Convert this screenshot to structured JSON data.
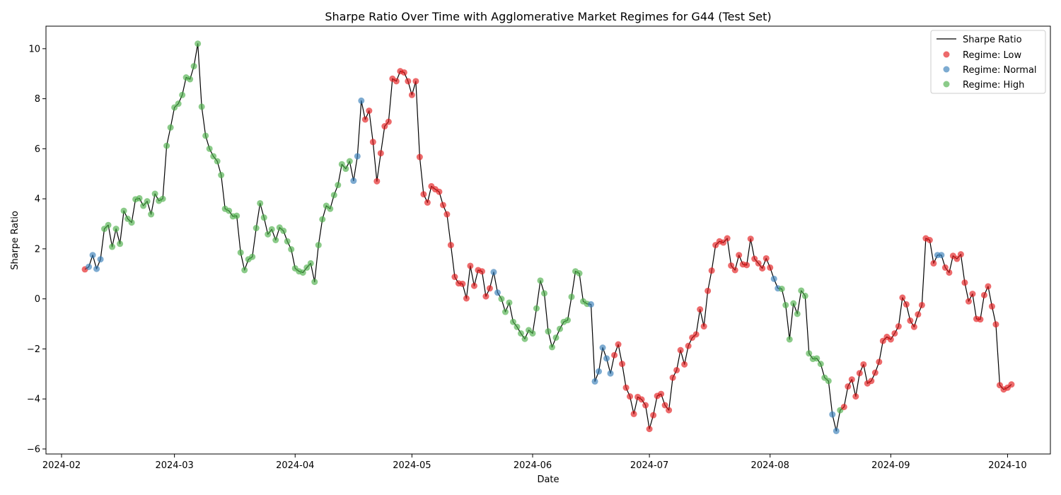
{
  "chart_data": {
    "type": "line",
    "title": "Sharpe Ratio Over Time with Agglomerative Market Regimes for G44 (Test Set)",
    "xlabel": "Date",
    "ylabel": "Sharpe Ratio",
    "xlim": [
      "2024-01-28",
      "2024-10-12"
    ],
    "ylim": [
      -6.2,
      10.9
    ],
    "x_ticks": [
      "2024-02",
      "2024-03",
      "2024-04",
      "2024-05",
      "2024-06",
      "2024-07",
      "2024-08",
      "2024-09",
      "2024-10"
    ],
    "y_ticks": [
      -6,
      -4,
      -2,
      0,
      2,
      4,
      6,
      8,
      10
    ],
    "grid": false,
    "legend_position": "top-right",
    "legend": [
      "Sharpe Ratio",
      "Regime: Low",
      "Regime: Normal",
      "Regime: High"
    ],
    "colors": {
      "line": "#000000",
      "Low": "#e41a1c",
      "Normal": "#377eb8",
      "High": "#4daf4a"
    },
    "regime_codes": {
      "L": "Low",
      "N": "Normal",
      "H": "High"
    },
    "start_date": "2024-02-07",
    "values": [
      1.18,
      1.28,
      1.75,
      1.2,
      1.58,
      2.8,
      2.95,
      2.08,
      2.8,
      2.2,
      3.52,
      3.2,
      3.05,
      3.98,
      4.02,
      3.72,
      3.9,
      3.38,
      4.2,
      3.92,
      4.0,
      6.12,
      6.85,
      7.65,
      7.8,
      8.15,
      8.85,
      8.78,
      9.3,
      10.2,
      7.68,
      6.52,
      6.0,
      5.7,
      5.5,
      4.95,
      3.6,
      3.52,
      3.3,
      3.32,
      1.85,
      1.15,
      1.58,
      1.68,
      2.83,
      3.82,
      3.25,
      2.58,
      2.78,
      2.35,
      2.85,
      2.72,
      2.3,
      1.98,
      1.22,
      1.1,
      1.05,
      1.25,
      1.42,
      0.68,
      2.15,
      3.18,
      3.72,
      3.6,
      4.15,
      4.55,
      5.38,
      5.2,
      5.5,
      4.72,
      5.7,
      7.92,
      7.17,
      7.52,
      6.27,
      4.7,
      5.82,
      6.9,
      7.08,
      8.8,
      8.7,
      9.1,
      9.05,
      8.7,
      8.15,
      8.7,
      5.67,
      4.18,
      3.85,
      4.5,
      4.38,
      4.28,
      3.75,
      3.38,
      2.15,
      0.88,
      0.62,
      0.6,
      0.02,
      1.32,
      0.52,
      1.15,
      1.1,
      0.1,
      0.42,
      1.07,
      0.25,
      0.0,
      -0.52,
      -0.15,
      -0.92,
      -1.12,
      -1.38,
      -1.6,
      -1.25,
      -1.38,
      -0.38,
      0.73,
      0.22,
      -1.3,
      -1.93,
      -1.55,
      -1.2,
      -0.92,
      -0.85,
      0.08,
      1.1,
      1.02,
      -0.1,
      -0.2,
      -0.22,
      -3.3,
      -2.9,
      -1.95,
      -2.38,
      -2.98,
      -2.25,
      -1.82,
      -2.6,
      -3.55,
      -3.9,
      -4.6,
      -3.92,
      -4.02,
      -4.25,
      -5.2,
      -4.65,
      -3.88,
      -3.8,
      -4.25,
      -4.45,
      -3.15,
      -2.85,
      -2.05,
      -2.62,
      -1.88,
      -1.55,
      -1.42,
      -0.42,
      -1.1,
      0.32,
      1.13,
      2.15,
      2.3,
      2.25,
      2.42,
      1.33,
      1.15,
      1.75,
      1.38,
      1.35,
      2.4,
      1.6,
      1.42,
      1.22,
      1.62,
      1.25,
      0.8,
      0.42,
      0.4,
      -0.25,
      -1.62,
      -0.18,
      -0.6,
      0.33,
      0.12,
      -2.18,
      -2.4,
      -2.38,
      -2.6,
      -3.15,
      -3.28,
      -4.62,
      -5.28,
      -4.45,
      -4.32,
      -3.5,
      -3.22,
      -3.9,
      -2.97,
      -2.62,
      -3.38,
      -3.28,
      -2.95,
      -2.52,
      -1.68,
      -1.52,
      -1.62,
      -1.38,
      -1.1,
      0.05,
      -0.22,
      -0.87,
      -1.12,
      -0.62,
      -0.25,
      2.42,
      2.35,
      1.42,
      1.75,
      1.75,
      1.25,
      1.05,
      1.72,
      1.6,
      1.78,
      0.65,
      -0.1,
      0.2,
      -0.8,
      -0.82,
      0.15,
      0.5,
      -0.3,
      -1.02,
      -3.45,
      -3.62,
      -3.55,
      -3.42
    ],
    "regimes": "LNNNNHHHHHHHHHHHHHHHHHHHHHHHHHHHHHHHHHHHHHHHHHHHHHHHHHHHHHHHHHHHHHHHHNNNLLLLLLLLLLLLLLLLLLLLLLLLLLLLLLLLLNNHHHHHHHHHHHHHHHHHHHHHHHNNNNNNLLLLLLLLLLLLLLLLLLLLLLLLLLLLLLLLLLLLLLLLLNNHHHHHHHHHHHHHNNHLLLLLLLLLLLLLLLLLLLLLLLLNNLLLLLLLLLLLLLLLLLLLLLLLLNNNNHHHHHH"
  }
}
